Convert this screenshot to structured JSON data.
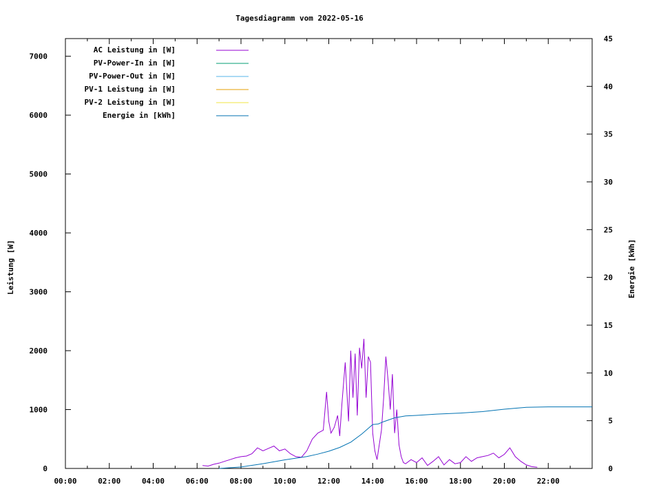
{
  "chart_data": {
    "type": "line",
    "title": "Tagesdiagramm vom 2022-05-16",
    "xlabel": "",
    "ylabel": "Leistung [W]",
    "y2label": "Energie [kWh]",
    "xlim_hours": [
      0,
      24
    ],
    "ylim": [
      0,
      7300
    ],
    "y2lim": [
      0,
      45
    ],
    "xticks": [
      "00:00",
      "02:00",
      "04:00",
      "06:00",
      "08:00",
      "10:00",
      "12:00",
      "14:00",
      "16:00",
      "18:00",
      "20:00",
      "22:00"
    ],
    "yticks": [
      0,
      1000,
      2000,
      3000,
      4000,
      5000,
      6000,
      7000
    ],
    "y2ticks": [
      0,
      5,
      10,
      15,
      20,
      25,
      30,
      35,
      40,
      45
    ],
    "grid": false,
    "legend_position": "top-left",
    "legend": [
      {
        "name": "AC Leistung in [W]",
        "color": "#9400d3"
      },
      {
        "name": "PV-Power-In in [W]",
        "color": "#009e73"
      },
      {
        "name": "PV-Power-Out in [W]",
        "color": "#56b4e9"
      },
      {
        "name": "PV-1 Leistung in [W]",
        "color": "#e69f00"
      },
      {
        "name": "PV-2 Leistung in [W]",
        "color": "#f0e442"
      },
      {
        "name": "Energie in [kWh]",
        "color": "#0072b2"
      }
    ],
    "series": [
      {
        "name": "AC Leistung in [W]",
        "axis": "y",
        "color": "#9400d3",
        "x": [
          6.25,
          6.5,
          6.75,
          7.0,
          7.25,
          7.5,
          7.75,
          8.0,
          8.25,
          8.5,
          8.75,
          9.0,
          9.25,
          9.5,
          9.75,
          10.0,
          10.25,
          10.5,
          10.75,
          11.0,
          11.25,
          11.5,
          11.75,
          11.9,
          12.0,
          12.1,
          12.25,
          12.4,
          12.5,
          12.6,
          12.75,
          12.9,
          13.0,
          13.1,
          13.2,
          13.3,
          13.4,
          13.5,
          13.6,
          13.7,
          13.8,
          13.9,
          14.0,
          14.1,
          14.2,
          14.3,
          14.4,
          14.5,
          14.6,
          14.7,
          14.8,
          14.9,
          15.0,
          15.1,
          15.2,
          15.3,
          15.4,
          15.5,
          15.75,
          16.0,
          16.25,
          16.5,
          16.75,
          17.0,
          17.25,
          17.5,
          17.75,
          18.0,
          18.25,
          18.5,
          18.75,
          19.0,
          19.25,
          19.5,
          19.75,
          20.0,
          20.25,
          20.5,
          20.75,
          21.0,
          21.25,
          21.5
        ],
        "values": [
          50,
          40,
          70,
          90,
          120,
          150,
          180,
          200,
          210,
          250,
          350,
          300,
          340,
          380,
          300,
          330,
          250,
          200,
          190,
          300,
          500,
          600,
          650,
          1300,
          800,
          600,
          700,
          900,
          550,
          1100,
          1800,
          800,
          2000,
          1200,
          1950,
          900,
          2050,
          1700,
          2200,
          1200,
          1900,
          1800,
          600,
          300,
          150,
          400,
          650,
          1200,
          1900,
          1500,
          1000,
          1600,
          600,
          1000,
          400,
          200,
          100,
          80,
          150,
          100,
          180,
          50,
          120,
          200,
          60,
          150,
          80,
          100,
          200,
          120,
          180,
          200,
          220,
          260,
          180,
          240,
          350,
          200,
          120,
          60,
          30,
          20
        ]
      },
      {
        "name": "Energie in [kWh]",
        "axis": "y2",
        "color": "#0072b2",
        "x": [
          7.0,
          8.0,
          9.0,
          10.0,
          11.0,
          11.5,
          12.0,
          12.5,
          13.0,
          13.5,
          14.0,
          14.25,
          14.5,
          15.0,
          15.5,
          16.0,
          17.0,
          18.0,
          19.0,
          20.0,
          20.5,
          21.0,
          22.0,
          24.0
        ],
        "values": [
          0.0,
          0.15,
          0.5,
          0.9,
          1.25,
          1.5,
          1.8,
          2.2,
          2.75,
          3.6,
          4.6,
          4.65,
          4.9,
          5.3,
          5.5,
          5.55,
          5.7,
          5.8,
          5.95,
          6.2,
          6.3,
          6.4,
          6.45,
          6.45
        ]
      }
    ]
  }
}
